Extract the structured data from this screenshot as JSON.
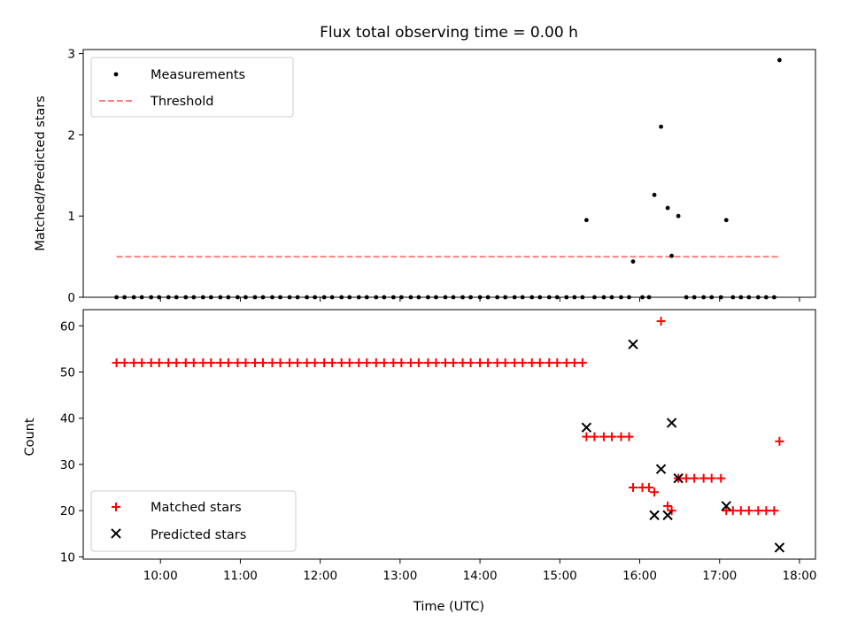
{
  "chart_data": [
    {
      "type": "scatter",
      "title": "Flux total observing time = 0.00 h",
      "xlabel": "",
      "ylabel": "Matched/Predicted stars",
      "ylim": [
        0,
        3.05
      ],
      "yticks": [
        0,
        1,
        2,
        3
      ],
      "legend_position": "top-left",
      "threshold": 0.5,
      "colors": {
        "measurements": "#000000",
        "threshold": "#ff7f7f"
      },
      "series": [
        {
          "name": "Measurements",
          "marker": "dot",
          "x": [
            "09:27",
            "09:33",
            "09:40",
            "09:46",
            "09:53",
            "09:59",
            "10:06",
            "10:12",
            "10:19",
            "10:25",
            "10:32",
            "10:38",
            "10:45",
            "10:51",
            "10:58",
            "11:04",
            "11:11",
            "11:17",
            "11:24",
            "11:30",
            "11:37",
            "11:43",
            "11:50",
            "11:56",
            "12:03",
            "12:09",
            "12:16",
            "12:22",
            "12:29",
            "12:35",
            "12:42",
            "12:48",
            "12:55",
            "13:01",
            "13:08",
            "13:14",
            "13:21",
            "13:27",
            "13:34",
            "13:40",
            "13:47",
            "13:53",
            "14:00",
            "14:06",
            "14:13",
            "14:19",
            "14:26",
            "14:32",
            "14:39",
            "14:45",
            "14:52",
            "14:58",
            "15:05",
            "15:11",
            "15:17",
            "15:20",
            "15:26",
            "15:33",
            "15:39",
            "15:46",
            "15:52",
            "15:55",
            "16:02",
            "16:07",
            "16:11",
            "16:16",
            "16:21",
            "16:24",
            "16:29",
            "16:35",
            "16:41",
            "16:48",
            "16:54",
            "17:01",
            "17:05",
            "17:10",
            "17:16",
            "17:22",
            "17:29",
            "17:35",
            "17:41",
            "17:45"
          ],
          "y": [
            0,
            0,
            0,
            0,
            0,
            0,
            0,
            0,
            0,
            0,
            0,
            0,
            0,
            0,
            0,
            0,
            0,
            0,
            0,
            0,
            0,
            0,
            0,
            0,
            0,
            0,
            0,
            0,
            0,
            0,
            0,
            0,
            0,
            0,
            0,
            0,
            0,
            0,
            0,
            0,
            0,
            0,
            0,
            0,
            0,
            0,
            0,
            0,
            0,
            0,
            0,
            0,
            0,
            0,
            0,
            0.95,
            0,
            0,
            0,
            0,
            0,
            0.44,
            0,
            0,
            1.26,
            2.1,
            1.1,
            0.51,
            1.0,
            0,
            0,
            0,
            0,
            0,
            0.95,
            0,
            0,
            0,
            0,
            0,
            0,
            2.92
          ]
        },
        {
          "name": "Threshold",
          "marker": "dashed-line",
          "x": [
            "09:27",
            "17:45"
          ],
          "y": [
            0.5,
            0.5
          ]
        }
      ]
    },
    {
      "type": "scatter",
      "title": "",
      "xlabel": "Time (UTC)",
      "ylabel": "Count",
      "xlim": [
        "09:02",
        "18:12"
      ],
      "ylim": [
        9.5,
        63.5
      ],
      "yticks": [
        10,
        20,
        30,
        40,
        50,
        60
      ],
      "xticks": [
        "10:00",
        "11:00",
        "12:00",
        "13:00",
        "14:00",
        "15:00",
        "16:00",
        "17:00",
        "18:00"
      ],
      "legend_position": "bottom-left",
      "colors": {
        "matched": "#ff0000",
        "predicted": "#000000"
      },
      "series": [
        {
          "name": "Matched stars",
          "marker": "plus",
          "x": [
            "09:27",
            "09:33",
            "09:40",
            "09:46",
            "09:53",
            "09:59",
            "10:06",
            "10:12",
            "10:19",
            "10:25",
            "10:32",
            "10:38",
            "10:45",
            "10:51",
            "10:58",
            "11:04",
            "11:11",
            "11:17",
            "11:24",
            "11:30",
            "11:37",
            "11:43",
            "11:50",
            "11:56",
            "12:03",
            "12:09",
            "12:16",
            "12:22",
            "12:29",
            "12:35",
            "12:42",
            "12:48",
            "12:55",
            "13:01",
            "13:08",
            "13:14",
            "13:21",
            "13:27",
            "13:34",
            "13:40",
            "13:47",
            "13:53",
            "14:00",
            "14:06",
            "14:13",
            "14:19",
            "14:26",
            "14:32",
            "14:39",
            "14:45",
            "14:52",
            "14:58",
            "15:05",
            "15:11",
            "15:17",
            "15:20",
            "15:26",
            "15:33",
            "15:39",
            "15:46",
            "15:52",
            "15:55",
            "16:02",
            "16:07",
            "16:11",
            "16:16",
            "16:21",
            "16:24",
            "16:29",
            "16:35",
            "16:41",
            "16:48",
            "16:54",
            "17:01",
            "17:05",
            "17:10",
            "17:16",
            "17:22",
            "17:29",
            "17:35",
            "17:41",
            "17:45"
          ],
          "y": [
            52,
            52,
            52,
            52,
            52,
            52,
            52,
            52,
            52,
            52,
            52,
            52,
            52,
            52,
            52,
            52,
            52,
            52,
            52,
            52,
            52,
            52,
            52,
            52,
            52,
            52,
            52,
            52,
            52,
            52,
            52,
            52,
            52,
            52,
            52,
            52,
            52,
            52,
            52,
            52,
            52,
            52,
            52,
            52,
            52,
            52,
            52,
            52,
            52,
            52,
            52,
            52,
            52,
            52,
            52,
            36,
            36,
            36,
            36,
            36,
            36,
            25,
            25,
            25,
            24,
            61,
            21,
            20,
            27,
            27,
            27,
            27,
            27,
            27,
            20,
            20,
            20,
            20,
            20,
            20,
            20,
            35
          ]
        },
        {
          "name": "Predicted stars",
          "marker": "x",
          "x": [
            "15:20",
            "15:55",
            "16:11",
            "16:16",
            "16:21",
            "16:24",
            "16:29",
            "17:05",
            "17:45"
          ],
          "y": [
            38,
            56,
            19,
            29,
            19,
            39,
            27,
            21,
            12
          ]
        }
      ]
    }
  ]
}
